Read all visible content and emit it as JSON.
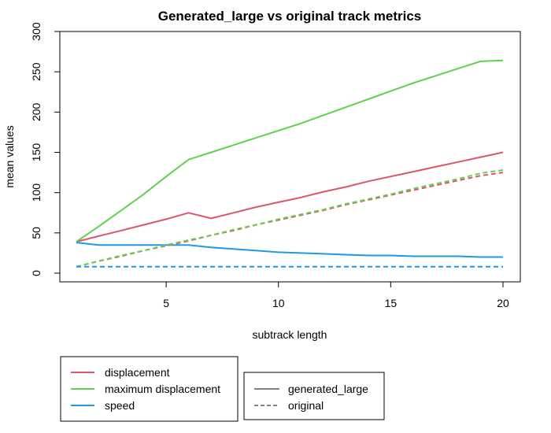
{
  "chart_data": {
    "type": "line",
    "title": "Generated_large vs original track metrics",
    "xlabel": "subtrack length",
    "ylabel": "mean values",
    "xlim": [
      1,
      20
    ],
    "ylim": [
      0,
      300
    ],
    "x_ticks": [
      5,
      10,
      15,
      20
    ],
    "y_ticks": [
      0,
      50,
      100,
      150,
      200,
      250,
      300
    ],
    "grid": false,
    "x": [
      1,
      2,
      3,
      4,
      5,
      6,
      7,
      8,
      9,
      10,
      11,
      12,
      13,
      14,
      15,
      16,
      17,
      18,
      19,
      20
    ],
    "series": [
      {
        "name": "displacement",
        "style": "generated_large",
        "color": "#DF536B",
        "values": [
          39,
          46,
          53,
          60,
          67,
          75,
          68,
          75,
          82,
          88,
          94,
          101,
          107,
          114,
          120,
          126,
          132,
          138,
          144,
          150
        ]
      },
      {
        "name": "maximum displacement",
        "style": "generated_large",
        "color": "#61D04F",
        "values": [
          39,
          58,
          78,
          98,
          120,
          141,
          150,
          159,
          168,
          177,
          186,
          196,
          206,
          216,
          226,
          236,
          245,
          254,
          263,
          264
        ]
      },
      {
        "name": "speed",
        "style": "generated_large",
        "color": "#2297E6",
        "values": [
          38,
          35,
          35,
          35,
          35,
          35,
          32,
          30,
          28,
          26,
          25,
          24,
          23,
          22,
          22,
          21,
          21,
          21,
          20,
          20
        ]
      },
      {
        "name": "displacement",
        "style": "original",
        "color": "#DF536B",
        "values": [
          8,
          15,
          21,
          28,
          34,
          40,
          47,
          53,
          60,
          66,
          72,
          78,
          85,
          91,
          97,
          103,
          109,
          115,
          121,
          125
        ]
      },
      {
        "name": "maximum displacement",
        "style": "original",
        "color": "#61D04F",
        "values": [
          8,
          15,
          22,
          28,
          35,
          41,
          47,
          54,
          60,
          67,
          73,
          79,
          86,
          92,
          98,
          105,
          111,
          117,
          124,
          128
        ]
      },
      {
        "name": "speed",
        "style": "original",
        "color": "#2297E6",
        "values": [
          8,
          8,
          8,
          8,
          8,
          8,
          8,
          8,
          8,
          8,
          8,
          8,
          8,
          8,
          8,
          8,
          8,
          8,
          8,
          8
        ]
      }
    ],
    "legend_colors": {
      "position": "bottom-left",
      "entries": [
        {
          "label": "displacement",
          "color": "#DF536B"
        },
        {
          "label": "maximum displacement",
          "color": "#61D04F"
        },
        {
          "label": "speed",
          "color": "#2297E6"
        }
      ]
    },
    "legend_styles": {
      "position": "bottom-center",
      "entries": [
        {
          "label": "generated_large",
          "dash": "solid"
        },
        {
          "label": "original",
          "dash": "dashed"
        }
      ]
    }
  }
}
